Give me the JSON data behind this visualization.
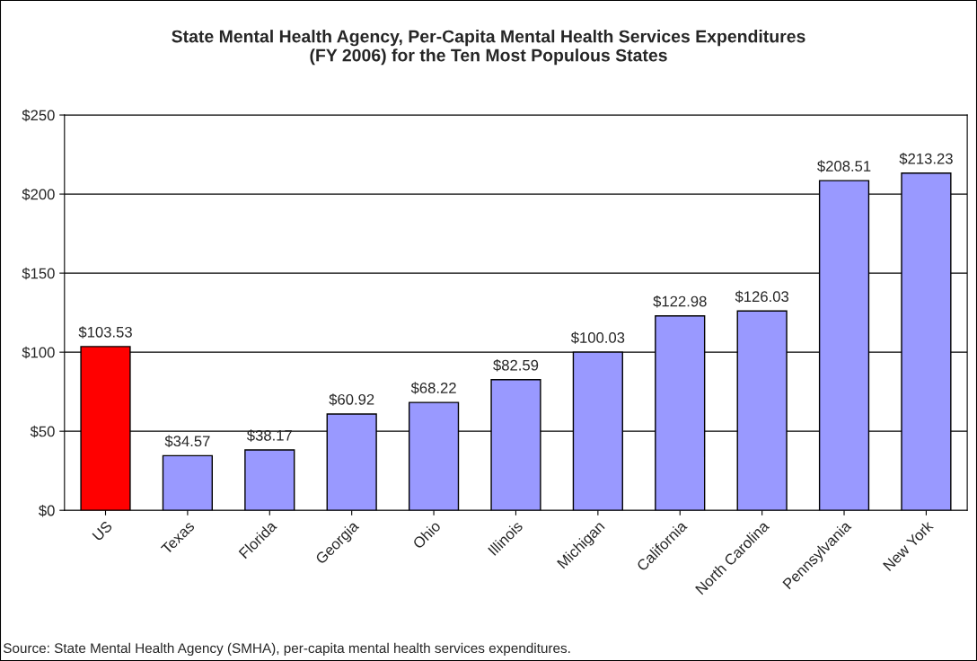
{
  "chart_data": {
    "type": "bar",
    "title": "State Mental Health Agency, Per-Capita Mental Health Services Expenditures\n(FY 2006) for the Ten Most Populous States",
    "categories": [
      "US",
      "Texas",
      "Florida",
      "Georgia",
      "Ohio",
      "Illinois",
      "Michigan",
      "California",
      "North Carolina",
      "Pennsylvania",
      "New York"
    ],
    "values": [
      103.53,
      34.57,
      38.17,
      60.92,
      68.22,
      82.59,
      100.03,
      122.98,
      126.03,
      208.51,
      213.23
    ],
    "colors": [
      "#ff0000",
      "#9999ff",
      "#9999ff",
      "#9999ff",
      "#9999ff",
      "#9999ff",
      "#9999ff",
      "#9999ff",
      "#9999ff",
      "#9999ff",
      "#9999ff"
    ],
    "value_labels": [
      "$103.53",
      "$34.57",
      "$38.17",
      "$60.92",
      "$68.22",
      "$82.59",
      "$100.03",
      "$122.98",
      "$126.03",
      "$208.51",
      "$213.23"
    ],
    "ylim": [
      0,
      250
    ],
    "yticks": [
      {
        "value": 0,
        "label": "$0"
      },
      {
        "value": 50,
        "label": "$50"
      },
      {
        "value": 100,
        "label": "$100"
      },
      {
        "value": 150,
        "label": "$150"
      },
      {
        "value": 200,
        "label": "$200"
      },
      {
        "value": 250,
        "label": "$250"
      }
    ],
    "grid": "y",
    "legend": false,
    "annotations": [
      "Source: State Mental Health Agency (SMHA), per-capita mental health services expenditures."
    ]
  }
}
